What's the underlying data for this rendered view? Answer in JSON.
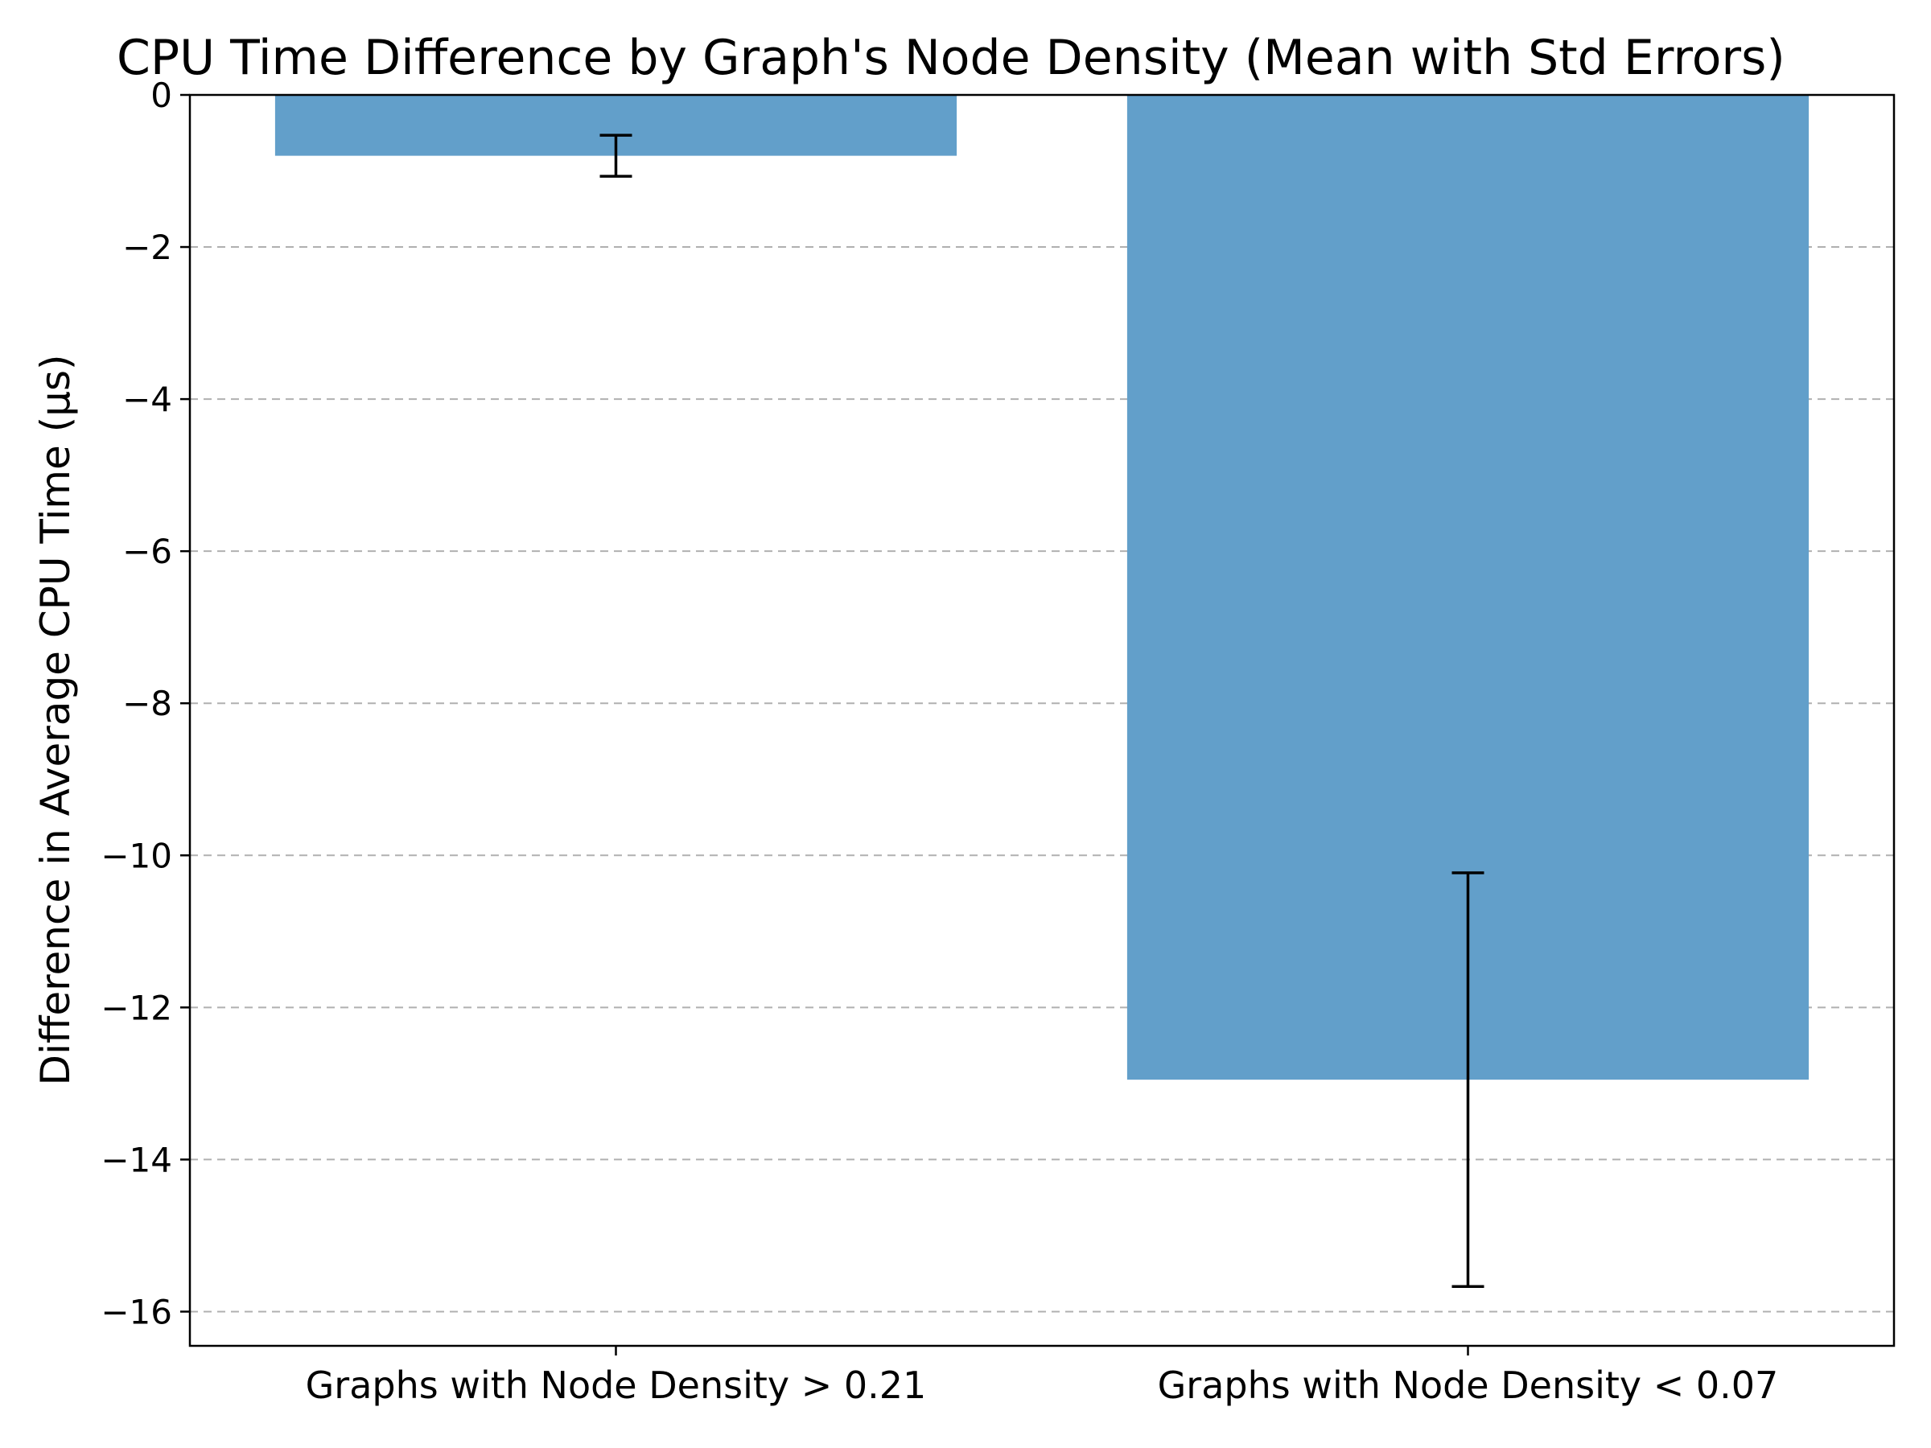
{
  "chart_data": {
    "type": "bar",
    "title": "CPU Time Difference by Graph's Node Density (Mean with Std Errors)",
    "xlabel": "",
    "ylabel": "Difference in Average CPU Time (µs)",
    "categories": [
      "Graphs with Node Density > 0.21",
      "Graphs with Node Density < 0.07"
    ],
    "values": [
      -0.8,
      -12.95
    ],
    "errors": [
      0.27,
      2.72
    ],
    "ylim": [
      -16.45,
      0
    ],
    "yticks": [
      0,
      -2,
      -4,
      -6,
      -8,
      -10,
      -12,
      -14,
      -16
    ],
    "ytick_labels": [
      "0",
      "−2",
      "−4",
      "−6",
      "−8",
      "−10",
      "−12",
      "−14",
      "−16"
    ],
    "grid": "y-dashed",
    "bar_color": "#629fca",
    "legend": "none"
  }
}
